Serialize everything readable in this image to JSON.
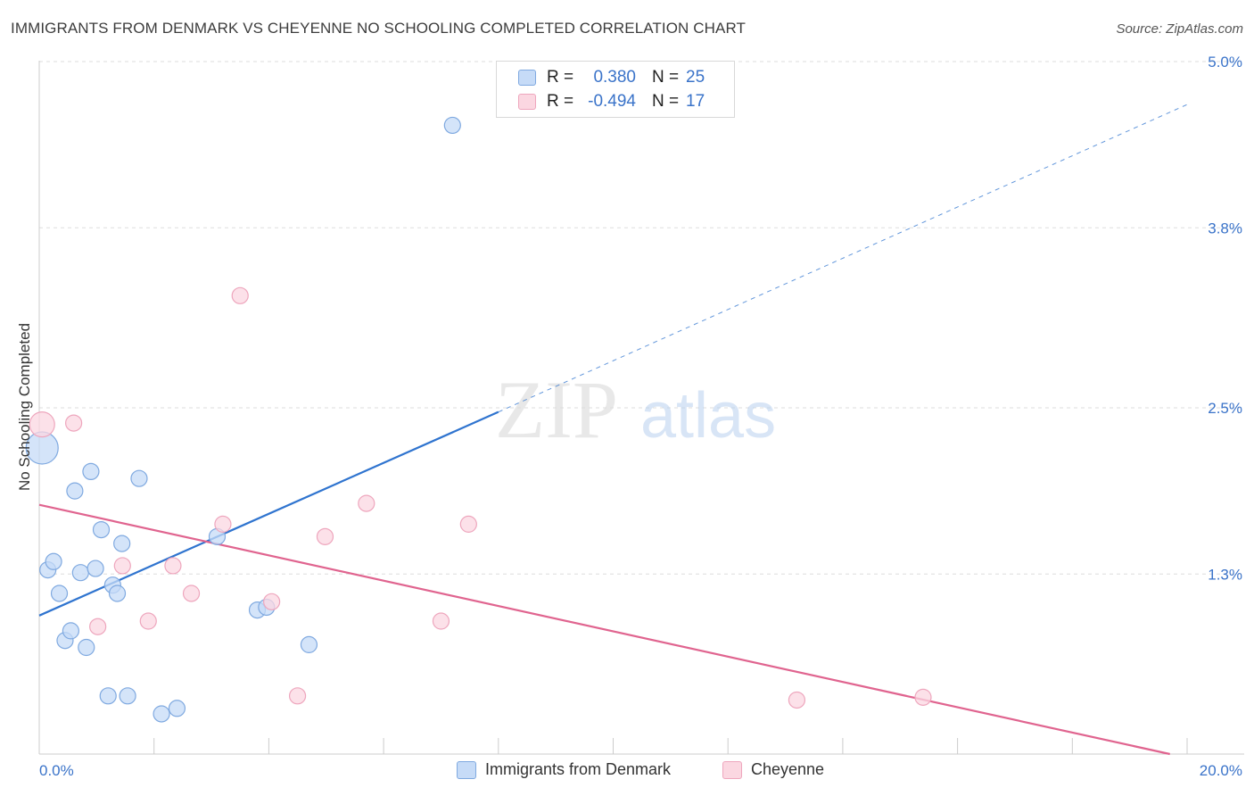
{
  "header": {
    "title": "IMMIGRANTS FROM DENMARK VS CHEYENNE NO SCHOOLING COMPLETED CORRELATION CHART",
    "source": "Source: ZipAtlas.com"
  },
  "watermark": {
    "zip": "ZIP",
    "atlas": "atlas"
  },
  "stats_legend": {
    "r_label": "R =",
    "n_label": "N =",
    "rows": [
      {
        "r": "0.380",
        "n": "25",
        "color": "#b9d3f5",
        "border": "#7aa7e2"
      },
      {
        "r": "-0.494",
        "n": "17",
        "color": "#fbd0dc",
        "border": "#ef9ab3"
      }
    ]
  },
  "colors": {
    "blue_fill": "#c6dbf7",
    "blue_stroke": "#7fa9e0",
    "blue_line": "#2f74cf",
    "pink_fill": "#fbd7e1",
    "pink_stroke": "#eea6bd",
    "pink_line": "#e0648f",
    "grid": "#dedede",
    "axis_label": "#3a73c9"
  },
  "chart_data": {
    "type": "scatter",
    "title": "IMMIGRANTS FROM DENMARK VS CHEYENNE NO SCHOOLING COMPLETED CORRELATION CHART",
    "xlabel": "",
    "ylabel": "No Schooling Completed",
    "xlim": [
      0,
      20
    ],
    "ylim": [
      0,
      5.2
    ],
    "x_tick_labels": [
      "0.0%",
      "20.0%"
    ],
    "y_ticks": [
      1.3,
      2.5,
      3.8,
      5.0
    ],
    "y_tick_labels": [
      "1.3%",
      "2.5%",
      "3.8%",
      "5.0%"
    ],
    "grid": true,
    "legend_position": "bottom-center",
    "series": [
      {
        "name": "Immigrants from Denmark",
        "points": [
          {
            "x": 0.05,
            "y": 2.21,
            "s": 18
          },
          {
            "x": 0.15,
            "y": 1.33,
            "s": 9
          },
          {
            "x": 0.25,
            "y": 1.39,
            "s": 9
          },
          {
            "x": 0.35,
            "y": 1.16,
            "s": 9
          },
          {
            "x": 0.45,
            "y": 0.82,
            "s": 9
          },
          {
            "x": 0.55,
            "y": 0.89,
            "s": 9
          },
          {
            "x": 0.62,
            "y": 1.9,
            "s": 9
          },
          {
            "x": 0.72,
            "y": 1.31,
            "s": 9
          },
          {
            "x": 0.82,
            "y": 0.77,
            "s": 9
          },
          {
            "x": 0.9,
            "y": 2.04,
            "s": 9
          },
          {
            "x": 0.98,
            "y": 1.34,
            "s": 9
          },
          {
            "x": 1.08,
            "y": 1.62,
            "s": 9
          },
          {
            "x": 1.2,
            "y": 0.42,
            "s": 9
          },
          {
            "x": 1.28,
            "y": 1.22,
            "s": 9
          },
          {
            "x": 1.36,
            "y": 1.16,
            "s": 9
          },
          {
            "x": 1.44,
            "y": 1.52,
            "s": 9
          },
          {
            "x": 1.54,
            "y": 0.42,
            "s": 9
          },
          {
            "x": 1.74,
            "y": 1.99,
            "s": 9
          },
          {
            "x": 2.13,
            "y": 0.29,
            "s": 9
          },
          {
            "x": 2.4,
            "y": 0.33,
            "s": 9
          },
          {
            "x": 3.1,
            "y": 1.57,
            "s": 9
          },
          {
            "x": 3.8,
            "y": 1.04,
            "s": 9
          },
          {
            "x": 3.96,
            "y": 1.06,
            "s": 9
          },
          {
            "x": 4.7,
            "y": 0.79,
            "s": 9
          },
          {
            "x": 7.2,
            "y": 4.54,
            "s": 9
          }
        ]
      },
      {
        "name": "Cheyenne",
        "points": [
          {
            "x": 0.05,
            "y": 2.38,
            "s": 14
          },
          {
            "x": 0.6,
            "y": 2.39,
            "s": 9
          },
          {
            "x": 1.02,
            "y": 0.92,
            "s": 9
          },
          {
            "x": 1.45,
            "y": 1.36,
            "s": 9
          },
          {
            "x": 1.9,
            "y": 0.96,
            "s": 9
          },
          {
            "x": 2.33,
            "y": 1.36,
            "s": 9
          },
          {
            "x": 2.65,
            "y": 1.16,
            "s": 9
          },
          {
            "x": 3.2,
            "y": 1.66,
            "s": 9
          },
          {
            "x": 3.5,
            "y": 3.31,
            "s": 9
          },
          {
            "x": 4.05,
            "y": 1.1,
            "s": 9
          },
          {
            "x": 4.5,
            "y": 0.42,
            "s": 9
          },
          {
            "x": 4.98,
            "y": 1.57,
            "s": 9
          },
          {
            "x": 5.7,
            "y": 1.81,
            "s": 9
          },
          {
            "x": 7.0,
            "y": 0.96,
            "s": 9
          },
          {
            "x": 7.48,
            "y": 1.66,
            "s": 9
          },
          {
            "x": 13.2,
            "y": 0.39,
            "s": 9
          },
          {
            "x": 15.4,
            "y": 0.41,
            "s": 9
          }
        ]
      }
    ],
    "trendlines": [
      {
        "series": "Immigrants from Denmark",
        "x0": 0,
        "y0": 1.0,
        "x1": 8.0,
        "y1": 2.47,
        "dash_to_x": 20,
        "dash_to_y": 4.69
      },
      {
        "series": "Cheyenne",
        "x0": 0,
        "y0": 1.8,
        "x1": 19.7,
        "y1": 0.0
      }
    ]
  },
  "bottom_legend": {
    "items": [
      {
        "label": "Immigrants from Denmark"
      },
      {
        "label": "Cheyenne"
      }
    ]
  }
}
